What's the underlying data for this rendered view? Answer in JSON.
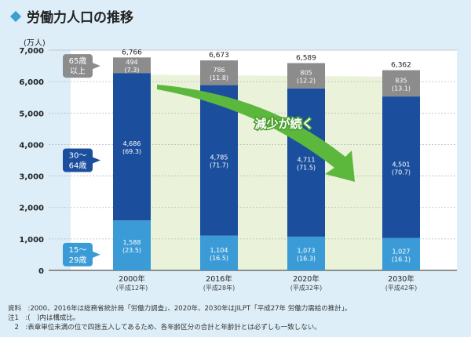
{
  "title": "労働力人口の推移",
  "notes": [
    "資料　:2000、2016年は総務省統計局「労働力調査」、2020年、2030年はJILPT「平成27年 労働力需給の推計」。",
    "注1　:(　)内は構成比。",
    "　2　:表章単位未満の位で四捨五入してあるため、各年齢区分の合計と年齢計とは必ずしも一致しない。"
  ],
  "chart_data": {
    "type": "bar",
    "stacked": true,
    "ylabel": "(万人)",
    "ylim": [
      0,
      7000
    ],
    "yticks": [
      "0",
      "1,000",
      "2,000",
      "3,000",
      "4,000",
      "5,000",
      "6,000",
      "7,000"
    ],
    "categories": [
      "2000年",
      "2016年",
      "2020年",
      "2030年"
    ],
    "category_sub": [
      "(平成12年)",
      "(平成28年)",
      "(平成32年)",
      "(平成42年)"
    ],
    "totals": [
      "6,766",
      "6,673",
      "6,589",
      "6,362"
    ],
    "total_values": [
      6766,
      6673,
      6589,
      6362
    ],
    "series": [
      {
        "name": "15〜29歳",
        "label_lines": [
          "15〜",
          "29歳"
        ],
        "color": "#3b9bd6",
        "values": [
          1588,
          1104,
          1073,
          1027
        ],
        "labels": [
          "1,588",
          "1,104",
          "1,073",
          "1,027"
        ],
        "shares": [
          "(23.5)",
          "(16.5)",
          "(16.3)",
          "(16.1)"
        ]
      },
      {
        "name": "30〜64歳",
        "label_lines": [
          "30〜",
          "64歳"
        ],
        "color": "#1b4f9e",
        "values": [
          4686,
          4785,
          4711,
          4501
        ],
        "labels": [
          "4,686",
          "4,785",
          "4,711",
          "4,501"
        ],
        "shares": [
          "(69.3)",
          "(71.7)",
          "(71.5)",
          "(70.7)"
        ]
      },
      {
        "name": "65歳以上",
        "label_lines": [
          "65歳",
          "以上"
        ],
        "color": "#8c8c8c",
        "values": [
          494,
          786,
          805,
          835
        ],
        "labels": [
          "494",
          "786",
          "805",
          "835"
        ],
        "shares": [
          "(7.3)",
          "(11.8)",
          "(12.2)",
          "(13.1)"
        ]
      }
    ],
    "annotation": "減少が続く"
  }
}
